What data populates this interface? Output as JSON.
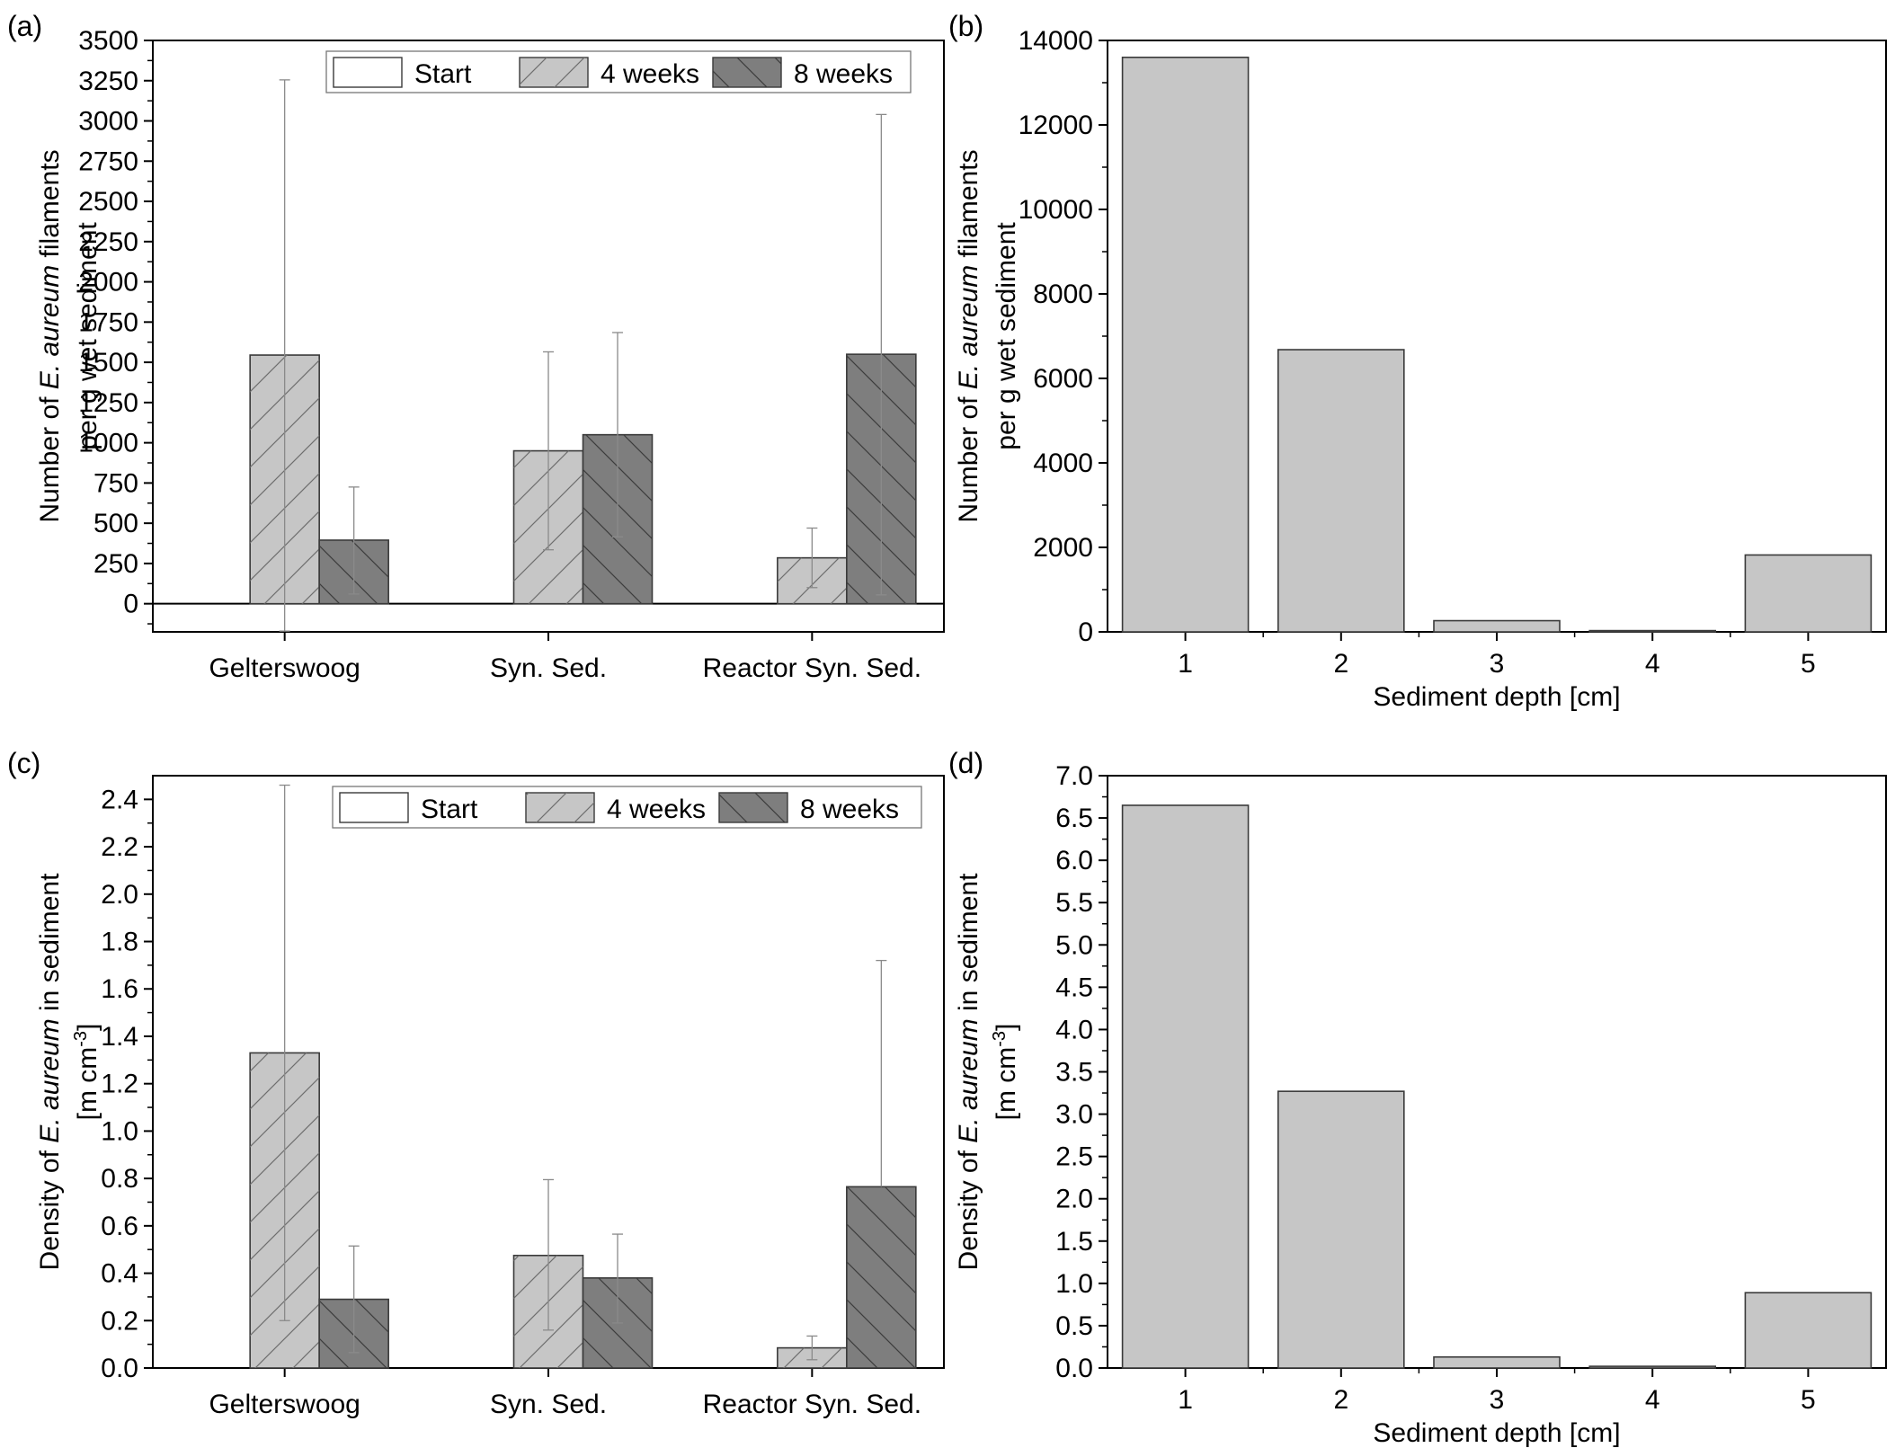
{
  "colors": {
    "start": "#ffffff",
    "weeks4": "#c6c6c6",
    "weeks8": "#7e7e7e",
    "depth_bar": "#c6c6c6",
    "hatch_4": "#6e6e6e",
    "hatch_8": "#3c3c3c",
    "errorbar": "#8a8a8a"
  },
  "chart_data": [
    {
      "panel_label": "(a)",
      "type": "bar",
      "categories": [
        "Gelterswoog",
        "Syn. Sed.",
        "Reactor Syn. Sed."
      ],
      "series": [
        {
          "name": "Start",
          "values": [
            0,
            0,
            0
          ],
          "err_low": [
            null,
            null,
            null
          ],
          "err_high": [
            null,
            null,
            null
          ]
        },
        {
          "name": "4 weeks",
          "values": [
            1545,
            950,
            285
          ],
          "err_low": [
            -170,
            335,
            100
          ],
          "err_high": [
            3255,
            1565,
            470
          ]
        },
        {
          "name": "8 weeks",
          "values": [
            395,
            1050,
            1550
          ],
          "err_low": [
            60,
            415,
            55
          ],
          "err_high": [
            725,
            1685,
            3040
          ]
        }
      ],
      "ylabel_lines": [
        [
          "Number of ",
          "E. aureum",
          " filaments"
        ],
        [
          "per g wet sediment",
          "",
          ""
        ]
      ],
      "ylim": [
        -175,
        3500
      ],
      "yticks": [
        0,
        250,
        500,
        750,
        1000,
        1250,
        1500,
        1750,
        2000,
        2250,
        2500,
        2750,
        3000,
        3250,
        3500
      ],
      "ytick_labels": [
        "0",
        "250",
        "500",
        "750",
        "1000",
        "1250",
        "1500",
        "1750",
        "2000",
        "2250",
        "2500",
        "2750",
        "3000",
        "3250",
        "3500"
      ],
      "legend": "top-right",
      "grid": false
    },
    {
      "panel_label": "(b)",
      "type": "bar",
      "categories": [
        "1",
        "2",
        "3",
        "4",
        "5"
      ],
      "values": [
        13600,
        6680,
        265,
        30,
        1820
      ],
      "xlabel": "Sediment depth [cm]",
      "ylabel_lines": [
        [
          "Number of ",
          "E. aureum",
          " filaments"
        ],
        [
          "per g wet sediment",
          "",
          ""
        ]
      ],
      "ylim": [
        0,
        14000
      ],
      "yticks": [
        0,
        2000,
        4000,
        6000,
        8000,
        10000,
        12000,
        14000
      ],
      "ytick_labels": [
        "0",
        "2000",
        "4000",
        "6000",
        "8000",
        "10000",
        "12000",
        "14000"
      ],
      "grid": false
    },
    {
      "panel_label": "(c)",
      "type": "bar",
      "categories": [
        "Gelterswoog",
        "Syn. Sed.",
        "Reactor Syn. Sed."
      ],
      "series": [
        {
          "name": "Start",
          "values": [
            0,
            0,
            0
          ],
          "err_low": [
            null,
            null,
            null
          ],
          "err_high": [
            null,
            null,
            null
          ]
        },
        {
          "name": "4 weeks",
          "values": [
            1.33,
            0.475,
            0.085
          ],
          "err_low": [
            0.2,
            0.16,
            0.035
          ],
          "err_high": [
            2.46,
            0.795,
            0.135
          ]
        },
        {
          "name": "8 weeks",
          "values": [
            0.29,
            0.38,
            0.765
          ],
          "err_low": [
            0.065,
            0.19,
            null
          ],
          "err_high": [
            0.515,
            0.565,
            1.72
          ]
        }
      ],
      "ylabel_lines": [
        [
          "Density of ",
          "E. aureum",
          " in sediment"
        ],
        [
          "[m cm",
          "-3",
          "]"
        ]
      ],
      "ylim": [
        0,
        2.5
      ],
      "yticks": [
        0.0,
        0.2,
        0.4,
        0.6,
        0.8,
        1.0,
        1.2,
        1.4,
        1.6,
        1.8,
        2.0,
        2.2,
        2.4
      ],
      "ytick_labels": [
        "0.0",
        "0.2",
        "0.4",
        "0.6",
        "0.8",
        "1.0",
        "1.2",
        "1.4",
        "1.6",
        "1.8",
        "2.0",
        "2.2",
        "2.4"
      ],
      "legend": "top-right",
      "grid": false
    },
    {
      "panel_label": "(d)",
      "type": "bar",
      "categories": [
        "1",
        "2",
        "3",
        "4",
        "5"
      ],
      "values": [
        6.65,
        3.27,
        0.13,
        0.02,
        0.89
      ],
      "xlabel": "Sediment depth [cm]",
      "ylabel_lines": [
        [
          "Density of ",
          "E. aureum",
          " in sediment"
        ],
        [
          "[m cm",
          "-3",
          "]"
        ]
      ],
      "ylim": [
        0,
        7.0
      ],
      "yticks": [
        0.0,
        0.5,
        1.0,
        1.5,
        2.0,
        2.5,
        3.0,
        3.5,
        4.0,
        4.5,
        5.0,
        5.5,
        6.0,
        6.5,
        7.0
      ],
      "ytick_labels": [
        "0.0",
        "0.5",
        "1.0",
        "1.5",
        "2.0",
        "2.5",
        "3.0",
        "3.5",
        "4.0",
        "4.5",
        "5.0",
        "5.5",
        "6.0",
        "6.5",
        "7.0"
      ],
      "grid": false
    }
  ]
}
